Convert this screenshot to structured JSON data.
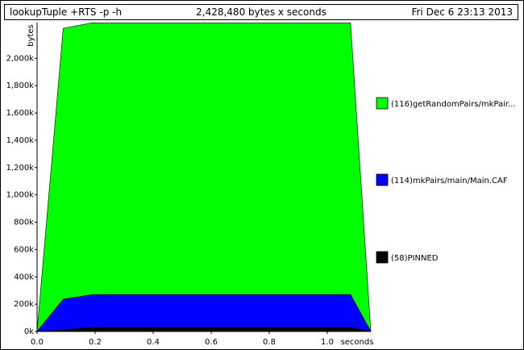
{
  "header": {
    "program": "lookupTuple +RTS -p -h",
    "total": "2,428,480 bytes x seconds",
    "date": "Fri Dec  6 23:13 2013"
  },
  "chart_data": {
    "type": "area",
    "stacked": true,
    "xlabel": "seconds",
    "ylabel": "bytes",
    "xlim": [
      0,
      1.15
    ],
    "ylim": [
      0,
      2250000
    ],
    "x_ticks": [
      "0.0",
      "0.2",
      "0.4",
      "0.6",
      "0.8",
      "1.0"
    ],
    "x_tick_values": [
      0.0,
      0.2,
      0.4,
      0.6,
      0.8,
      1.0
    ],
    "y_ticks": [
      "0k",
      "200k",
      "400k",
      "600k",
      "800k",
      "1,000k",
      "1,200k",
      "1,400k",
      "1,600k",
      "1,800k",
      "2,000k"
    ],
    "y_tick_values": [
      0,
      200000,
      400000,
      600000,
      800000,
      1000000,
      1200000,
      1400000,
      1600000,
      1800000,
      2000000
    ],
    "x": [
      0.0,
      0.09,
      0.19,
      1.08,
      1.15
    ],
    "series": [
      {
        "name": "(58)PINNED",
        "color": "#000000",
        "values": [
          0,
          10000,
          30000,
          30000,
          0
        ]
      },
      {
        "name": "(114)mkPairs/main/Main.CAF",
        "color": "#0000ff",
        "values": [
          0,
          225000,
          240000,
          240000,
          0
        ]
      },
      {
        "name": "(116)getRandomPairs/mkPair...",
        "color": "#00ff00",
        "values": [
          0,
          1985000,
          1990000,
          1990000,
          0
        ]
      }
    ],
    "legend_placement": "right"
  }
}
